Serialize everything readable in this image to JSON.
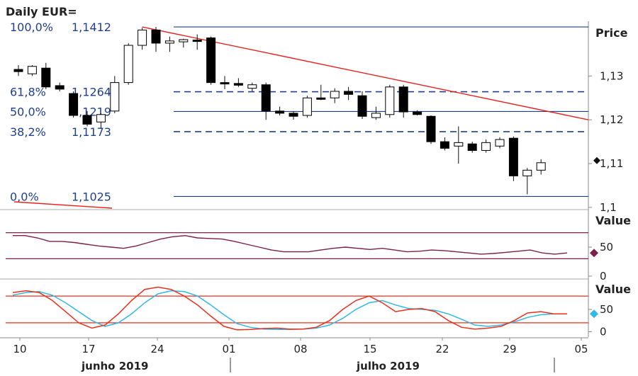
{
  "chart_data": {
    "type": "candlestick",
    "title": "Daily EUR=",
    "price_axis": {
      "title": "Price",
      "ticks": [
        "1,13",
        "1,12",
        "1,11",
        "1,1"
      ],
      "tick_values": [
        1.13,
        1.12,
        1.11,
        1.1
      ],
      "range": [
        1.0995,
        1.1425
      ]
    },
    "x_ticks": [
      "10",
      "17",
      "24",
      "01",
      "08",
      "15",
      "22",
      "29",
      "05"
    ],
    "months": [
      "junho 2019",
      "julho 2019"
    ],
    "candles": [
      {
        "o": 1.1315,
        "h": 1.1325,
        "l": 1.13,
        "c": 1.131
      },
      {
        "o": 1.1305,
        "h": 1.1325,
        "l": 1.13,
        "c": 1.1322
      },
      {
        "o": 1.1318,
        "h": 1.133,
        "l": 1.127,
        "c": 1.1275
      },
      {
        "o": 1.1278,
        "h": 1.1285,
        "l": 1.1265,
        "c": 1.127
      },
      {
        "o": 1.126,
        "h": 1.1265,
        "l": 1.1205,
        "c": 1.121
      },
      {
        "o": 1.121,
        "h": 1.122,
        "l": 1.1185,
        "c": 1.119
      },
      {
        "o": 1.1195,
        "h": 1.1215,
        "l": 1.118,
        "c": 1.1212
      },
      {
        "o": 1.122,
        "h": 1.13,
        "l": 1.1215,
        "c": 1.1285
      },
      {
        "o": 1.1285,
        "h": 1.1375,
        "l": 1.128,
        "c": 1.137
      },
      {
        "o": 1.137,
        "h": 1.141,
        "l": 1.136,
        "c": 1.1405
      },
      {
        "o": 1.1405,
        "h": 1.1412,
        "l": 1.1355,
        "c": 1.1375
      },
      {
        "o": 1.1375,
        "h": 1.139,
        "l": 1.1355,
        "c": 1.138
      },
      {
        "o": 1.1378,
        "h": 1.1385,
        "l": 1.1365,
        "c": 1.1383
      },
      {
        "o": 1.1382,
        "h": 1.1395,
        "l": 1.136,
        "c": 1.138
      },
      {
        "o": 1.1387,
        "h": 1.139,
        "l": 1.128,
        "c": 1.1285
      },
      {
        "o": 1.1285,
        "h": 1.13,
        "l": 1.127,
        "c": 1.1284
      },
      {
        "o": 1.1283,
        "h": 1.1295,
        "l": 1.1275,
        "c": 1.1279
      },
      {
        "o": 1.1272,
        "h": 1.1285,
        "l": 1.1265,
        "c": 1.128
      },
      {
        "o": 1.128,
        "h": 1.1285,
        "l": 1.12,
        "c": 1.122
      },
      {
        "o": 1.122,
        "h": 1.123,
        "l": 1.121,
        "c": 1.1215
      },
      {
        "o": 1.1215,
        "h": 1.122,
        "l": 1.12,
        "c": 1.1208
      },
      {
        "o": 1.121,
        "h": 1.1255,
        "l": 1.1205,
        "c": 1.125
      },
      {
        "o": 1.125,
        "h": 1.128,
        "l": 1.1245,
        "c": 1.1248
      },
      {
        "o": 1.125,
        "h": 1.1272,
        "l": 1.1238,
        "c": 1.1265
      },
      {
        "o": 1.1265,
        "h": 1.1275,
        "l": 1.1245,
        "c": 1.1258
      },
      {
        "o": 1.1255,
        "h": 1.1265,
        "l": 1.1202,
        "c": 1.1208
      },
      {
        "o": 1.1205,
        "h": 1.123,
        "l": 1.12,
        "c": 1.1215
      },
      {
        "o": 1.1212,
        "h": 1.128,
        "l": 1.1205,
        "c": 1.1275
      },
      {
        "o": 1.1275,
        "h": 1.128,
        "l": 1.1205,
        "c": 1.1218
      },
      {
        "o": 1.1218,
        "h": 1.1222,
        "l": 1.121,
        "c": 1.1212
      },
      {
        "o": 1.1208,
        "h": 1.121,
        "l": 1.1145,
        "c": 1.115
      },
      {
        "o": 1.115,
        "h": 1.116,
        "l": 1.113,
        "c": 1.1135
      },
      {
        "o": 1.114,
        "h": 1.1185,
        "l": 1.11,
        "c": 1.1148
      },
      {
        "o": 1.1145,
        "h": 1.115,
        "l": 1.1125,
        "c": 1.113
      },
      {
        "o": 1.113,
        "h": 1.1155,
        "l": 1.1125,
        "c": 1.1148
      },
      {
        "o": 1.114,
        "h": 1.116,
        "l": 1.1135,
        "c": 1.1155
      },
      {
        "o": 1.1158,
        "h": 1.1162,
        "l": 1.106,
        "c": 1.1072
      },
      {
        "o": 1.1072,
        "h": 1.109,
        "l": 1.103,
        "c": 1.1085
      },
      {
        "o": 1.1085,
        "h": 1.111,
        "l": 1.1075,
        "c": 1.1102
      }
    ],
    "fibonacci": [
      {
        "pct": "100,0%",
        "value": "1,1412",
        "v": 1.1412,
        "dashed": false
      },
      {
        "pct": "61,8%",
        "value": "1,1264",
        "v": 1.1264,
        "dashed": true
      },
      {
        "pct": "50,0%",
        "value": "1,1219",
        "v": 1.1219,
        "dashed": false
      },
      {
        "pct": "38,2%",
        "value": "1,1173",
        "v": 1.1173,
        "dashed": true
      },
      {
        "pct": "0,0%",
        "value": "1,1025",
        "v": 1.1025,
        "dashed": false
      }
    ],
    "trendline": {
      "from_candle": 9,
      "from_value": 1.1412,
      "to_value": 1.12
    },
    "indicator1": {
      "title": "Value",
      "ticks": [
        "50",
        "0"
      ],
      "tick_values": [
        50,
        0
      ],
      "range": [
        -5,
        110
      ],
      "bands": [
        75,
        30
      ],
      "marker": 40,
      "values": [
        70,
        70,
        66,
        60,
        60,
        58,
        55,
        52,
        50,
        48,
        52,
        58,
        64,
        68,
        70,
        66,
        65,
        64,
        60,
        55,
        50,
        45,
        42,
        42,
        42,
        45,
        48,
        50,
        48,
        46,
        48,
        45,
        42,
        43,
        45,
        44,
        42,
        40,
        38,
        39,
        41,
        43,
        45,
        40,
        38,
        40
      ]
    },
    "indicator2": {
      "title": "Value",
      "ticks": [
        "50",
        "0"
      ],
      "tick_values": [
        50,
        0
      ],
      "range": [
        -12,
        112
      ],
      "bands": [
        80,
        20
      ],
      "marker": 40,
      "fast": [
        88,
        92,
        88,
        70,
        45,
        20,
        8,
        15,
        40,
        70,
        95,
        100,
        95,
        80,
        60,
        35,
        12,
        4,
        5,
        7,
        8,
        6,
        6,
        10,
        25,
        50,
        70,
        80,
        65,
        45,
        50,
        52,
        45,
        25,
        10,
        6,
        8,
        12,
        25,
        42,
        45,
        40,
        40
      ],
      "slow": [
        82,
        88,
        90,
        82,
        65,
        45,
        25,
        12,
        20,
        40,
        65,
        85,
        92,
        90,
        80,
        60,
        38,
        18,
        10,
        6,
        5,
        5,
        6,
        8,
        15,
        30,
        50,
        65,
        70,
        60,
        52,
        50,
        48,
        40,
        28,
        15,
        12,
        15,
        22,
        32,
        38,
        40,
        40
      ]
    }
  }
}
